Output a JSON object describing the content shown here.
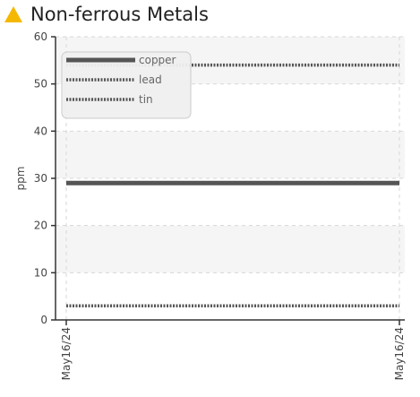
{
  "header": {
    "icon": "warning-triangle-icon",
    "title": "Non-ferrous Metals"
  },
  "colors": {
    "icon": "#f5b800",
    "series": "#555555",
    "grid": "#d7d7d7",
    "band": "#f5f5f5",
    "axis": "#333333",
    "legend_bg": "#f0f0f0",
    "legend_border": "#c9c9c9"
  },
  "chart_data": {
    "type": "line",
    "title": "Non-ferrous Metals",
    "xlabel": "",
    "ylabel": "ppm",
    "x_ticks": [
      "May16/24",
      "May16/24"
    ],
    "y_ticks": [
      0,
      10,
      20,
      30,
      40,
      50,
      60
    ],
    "ylim": [
      0,
      60
    ],
    "grid": true,
    "legend_position": "top-left",
    "series": [
      {
        "name": "copper",
        "style": "solid",
        "values": [
          29,
          29
        ]
      },
      {
        "name": "lead",
        "style": "dotted",
        "values": [
          54,
          54
        ]
      },
      {
        "name": "tin",
        "style": "dashed",
        "values": [
          3,
          3
        ]
      }
    ]
  }
}
